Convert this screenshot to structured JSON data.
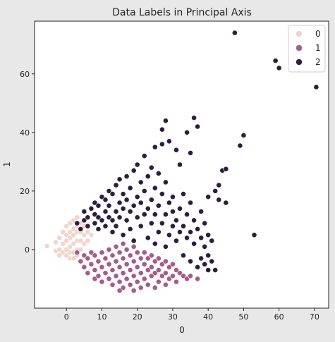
{
  "chart_data": {
    "type": "scatter",
    "title": "Data Labels in Principal Axis",
    "xlabel": "0",
    "ylabel": "1",
    "xlim": [
      -9,
      74
    ],
    "ylim": [
      -20,
      78
    ],
    "xticks": [
      0,
      10,
      20,
      30,
      40,
      50,
      60,
      70
    ],
    "yticks": [
      0,
      20,
      40,
      60
    ],
    "grid": false,
    "legend": {
      "placement": "top-right",
      "title": ""
    },
    "series": [
      {
        "name": "0",
        "color": "#f0d5cd",
        "points": [
          [
            -5.5,
            1.2
          ],
          [
            -3,
            2.5
          ],
          [
            -3,
            -0.5
          ],
          [
            -2,
            4
          ],
          [
            -2,
            0
          ],
          [
            -2,
            -2
          ],
          [
            -1,
            6
          ],
          [
            -1,
            2
          ],
          [
            -1,
            -1
          ],
          [
            0,
            8
          ],
          [
            0,
            5
          ],
          [
            0,
            3
          ],
          [
            0,
            0
          ],
          [
            0,
            -2
          ],
          [
            1,
            9
          ],
          [
            1,
            6
          ],
          [
            1,
            4
          ],
          [
            1,
            1
          ],
          [
            1,
            -1
          ],
          [
            1,
            -3
          ],
          [
            2,
            10
          ],
          [
            2,
            7
          ],
          [
            2,
            5
          ],
          [
            2,
            2
          ],
          [
            2,
            -1
          ],
          [
            2,
            -3
          ],
          [
            3,
            11
          ],
          [
            3,
            8
          ],
          [
            3,
            6
          ],
          [
            3,
            3
          ],
          [
            3,
            0
          ],
          [
            3,
            -2
          ],
          [
            4,
            9
          ],
          [
            4,
            6
          ],
          [
            4,
            3
          ],
          [
            4,
            0
          ],
          [
            5,
            8
          ],
          [
            5,
            5
          ],
          [
            5,
            2
          ],
          [
            6,
            6
          ],
          [
            6,
            3
          ],
          [
            7,
            5
          ]
        ]
      },
      {
        "name": "1",
        "color": "#a55c8c",
        "points": [
          [
            3,
            -1
          ],
          [
            4,
            -4
          ],
          [
            5,
            -2
          ],
          [
            5,
            -6
          ],
          [
            6,
            -3
          ],
          [
            6,
            -8
          ],
          [
            7,
            -1
          ],
          [
            7,
            -5
          ],
          [
            8,
            -2
          ],
          [
            8,
            -7
          ],
          [
            8,
            -10
          ],
          [
            9,
            -4
          ],
          [
            9,
            -9
          ],
          [
            10,
            -1
          ],
          [
            10,
            -6
          ],
          [
            10,
            -11
          ],
          [
            11,
            -3
          ],
          [
            11,
            -8
          ],
          [
            12,
            0
          ],
          [
            12,
            -5
          ],
          [
            12,
            -10
          ],
          [
            13,
            -2
          ],
          [
            13,
            -7
          ],
          [
            13,
            -12
          ],
          [
            14,
            1
          ],
          [
            14,
            -4
          ],
          [
            14,
            -9
          ],
          [
            15,
            -1
          ],
          [
            15,
            -6
          ],
          [
            15,
            -11
          ],
          [
            15,
            -14
          ],
          [
            16,
            2
          ],
          [
            16,
            -3
          ],
          [
            16,
            -8
          ],
          [
            16,
            -13
          ],
          [
            17,
            0
          ],
          [
            17,
            -5
          ],
          [
            17,
            -10
          ],
          [
            18,
            -2
          ],
          [
            18,
            -7
          ],
          [
            18,
            -12
          ],
          [
            19,
            1
          ],
          [
            19,
            -4
          ],
          [
            19,
            -9
          ],
          [
            19,
            -14
          ],
          [
            20,
            -1
          ],
          [
            20,
            -6
          ],
          [
            20,
            -11
          ],
          [
            21,
            -3
          ],
          [
            21,
            -8
          ],
          [
            21,
            -13
          ],
          [
            22,
            -1
          ],
          [
            22,
            -5
          ],
          [
            22,
            -10
          ],
          [
            23,
            -3
          ],
          [
            23,
            -7
          ],
          [
            23,
            -12
          ],
          [
            24,
            -2
          ],
          [
            24,
            -6
          ],
          [
            24,
            -9
          ],
          [
            25,
            -4
          ],
          [
            25,
            -8
          ],
          [
            25,
            -13
          ],
          [
            26,
            -3
          ],
          [
            26,
            -7
          ],
          [
            26,
            -11
          ],
          [
            27,
            -5
          ],
          [
            27,
            -9
          ],
          [
            28,
            -4
          ],
          [
            28,
            -8
          ],
          [
            28,
            -12
          ],
          [
            29,
            -6
          ],
          [
            29,
            -10
          ],
          [
            30,
            -5
          ],
          [
            30,
            -9
          ],
          [
            31,
            -7
          ],
          [
            31,
            -11
          ],
          [
            32,
            -8
          ],
          [
            33,
            -9
          ],
          [
            34,
            -10
          ],
          [
            35,
            -9
          ],
          [
            37,
            -10
          ]
        ]
      },
      {
        "name": "2",
        "color": "#2d1e3e",
        "points": [
          [
            3,
            9
          ],
          [
            4,
            7
          ],
          [
            5,
            10
          ],
          [
            5,
            13
          ],
          [
            6,
            8
          ],
          [
            6,
            11
          ],
          [
            7,
            14
          ],
          [
            8,
            9
          ],
          [
            8,
            12
          ],
          [
            8,
            16
          ],
          [
            9,
            7
          ],
          [
            9,
            11
          ],
          [
            9,
            15
          ],
          [
            10,
            18
          ],
          [
            10,
            10
          ],
          [
            11,
            13
          ],
          [
            11,
            8
          ],
          [
            11,
            17
          ],
          [
            12,
            20
          ],
          [
            12,
            11
          ],
          [
            12,
            15
          ],
          [
            13,
            6
          ],
          [
            13,
            10
          ],
          [
            13,
            19
          ],
          [
            14,
            22
          ],
          [
            14,
            13
          ],
          [
            14,
            8
          ],
          [
            15,
            16
          ],
          [
            15,
            11
          ],
          [
            15,
            24
          ],
          [
            16,
            5
          ],
          [
            16,
            14
          ],
          [
            16,
            19
          ],
          [
            17,
            10
          ],
          [
            17,
            17
          ],
          [
            17,
            25
          ],
          [
            18,
            7
          ],
          [
            18,
            13
          ],
          [
            18,
            21
          ],
          [
            19,
            15
          ],
          [
            19,
            27
          ],
          [
            19,
            3
          ],
          [
            20,
            11
          ],
          [
            20,
            18
          ],
          [
            20,
            29
          ],
          [
            21,
            8
          ],
          [
            21,
            16
          ],
          [
            21,
            23
          ],
          [
            22,
            12
          ],
          [
            22,
            20
          ],
          [
            22,
            32
          ],
          [
            23,
            4
          ],
          [
            23,
            14
          ],
          [
            23,
            25
          ],
          [
            24,
            9
          ],
          [
            24,
            17
          ],
          [
            24,
            28
          ],
          [
            25,
            2
          ],
          [
            25,
            12
          ],
          [
            25,
            21
          ],
          [
            25,
            35
          ],
          [
            26,
            6
          ],
          [
            26,
            15
          ],
          [
            26,
            26
          ],
          [
            27,
            9
          ],
          [
            27,
            19
          ],
          [
            27,
            36
          ],
          [
            27,
            41
          ],
          [
            28,
            1
          ],
          [
            28,
            12
          ],
          [
            28,
            23
          ],
          [
            28,
            44
          ],
          [
            29,
            5
          ],
          [
            29,
            16
          ],
          [
            29,
            37
          ],
          [
            30,
            8
          ],
          [
            30,
            18
          ],
          [
            30,
            13
          ],
          [
            31,
            3
          ],
          [
            31,
            10
          ],
          [
            31,
            34
          ],
          [
            32,
            6
          ],
          [
            32,
            14
          ],
          [
            32,
            29
          ],
          [
            33,
            -2
          ],
          [
            33,
            8
          ],
          [
            33,
            19
          ],
          [
            34,
            4
          ],
          [
            34,
            12
          ],
          [
            34,
            40
          ],
          [
            35,
            -4
          ],
          [
            35,
            6
          ],
          [
            35,
            16
          ],
          [
            35,
            33
          ],
          [
            36,
            2
          ],
          [
            36,
            10
          ],
          [
            36,
            45
          ],
          [
            37,
            -6
          ],
          [
            37,
            7
          ],
          [
            37,
            42
          ],
          [
            38,
            -3
          ],
          [
            38,
            4
          ],
          [
            38,
            13
          ],
          [
            39,
            -5
          ],
          [
            39,
            1
          ],
          [
            39,
            9
          ],
          [
            40,
            -7
          ],
          [
            40,
            -2
          ],
          [
            40,
            5
          ],
          [
            40,
            18
          ],
          [
            41,
            -4
          ],
          [
            41,
            3
          ],
          [
            42,
            -7
          ],
          [
            42,
            20
          ],
          [
            43,
            22
          ],
          [
            43,
            17
          ],
          [
            44,
            27
          ],
          [
            45,
            16
          ],
          [
            45,
            27.5
          ],
          [
            49,
            35.5
          ],
          [
            50,
            39
          ],
          [
            53,
            5
          ],
          [
            47.5,
            74
          ],
          [
            59,
            64.5
          ],
          [
            60,
            62
          ],
          [
            70.5,
            55.5
          ]
        ]
      }
    ]
  }
}
